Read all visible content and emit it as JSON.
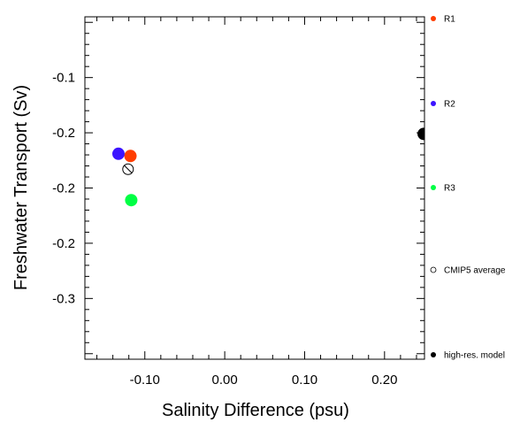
{
  "chart_data": {
    "type": "scatter",
    "xlabel": "Salinity Difference (psu)",
    "ylabel": "Freshwater Transport (Sv)",
    "xlim": [
      -0.175,
      0.25
    ],
    "ylim": [
      -0.355,
      -0.045
    ],
    "x_ticks": [
      {
        "value": -0.1,
        "label": "-0.10"
      },
      {
        "value": 0.0,
        "label": "0.00"
      },
      {
        "value": 0.1,
        "label": "0.10"
      },
      {
        "value": 0.2,
        "label": "0.20"
      }
    ],
    "y_ticks": [
      {
        "value": -0.1,
        "label": "-0.1"
      },
      {
        "value": -0.15,
        "label": "-0.2"
      },
      {
        "value": -0.2,
        "label": "-0.2"
      },
      {
        "value": -0.25,
        "label": "-0.2"
      },
      {
        "value": -0.3,
        "label": "-0.3"
      }
    ],
    "series": [
      {
        "name": "R1",
        "color": "#ff3d00",
        "points": [
          {
            "x": -0.118,
            "y": -0.171
          }
        ]
      },
      {
        "name": "R2",
        "color": "#3c14ff",
        "points": [
          {
            "x": -0.133,
            "y": -0.169
          }
        ]
      },
      {
        "name": "R3",
        "color": "#00ff44",
        "points": [
          {
            "x": -0.117,
            "y": -0.211
          }
        ]
      },
      {
        "name": "CMIP5 average",
        "color": "#ffffff",
        "marker": "hatched-circle",
        "points": [
          {
            "x": -0.121,
            "y": -0.183
          }
        ]
      },
      {
        "name": "high-res. model",
        "color": "#000000",
        "points": [
          {
            "x": 0.249,
            "y": -0.151
          }
        ]
      }
    ],
    "legend_placement": "right",
    "grid": false
  }
}
